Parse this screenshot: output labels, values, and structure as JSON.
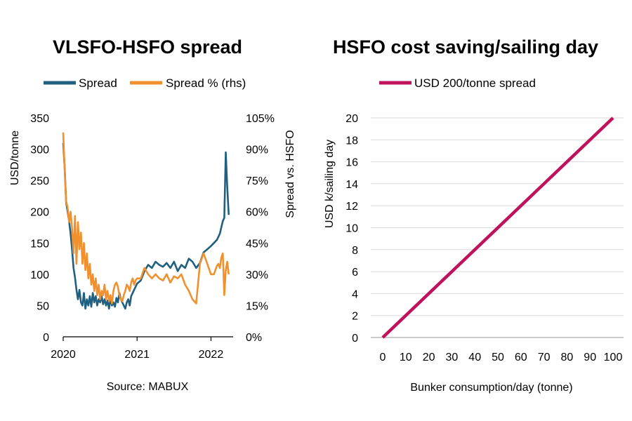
{
  "chart_data": [
    {
      "type": "line",
      "title": "VLSFO-HSFO spread",
      "ylabel": "USD/tonne",
      "y2label": "Spread  vs. HSFO",
      "ylim": [
        0,
        350
      ],
      "y2lim": [
        0,
        105
      ],
      "yticks": [
        "0",
        "50",
        "100",
        "150",
        "200",
        "250",
        "300",
        "350"
      ],
      "y2ticks": [
        "0%",
        "15%",
        "30%",
        "45%",
        "60%",
        "75%",
        "90%",
        "105%"
      ],
      "xticks": [
        "2020",
        "2021",
        "2022"
      ],
      "xlim": [
        2020.0,
        2022.3
      ],
      "grid": false,
      "legend_position": "top",
      "source": "Source: MABUX",
      "colors": {
        "Spread": "#1f5f7f",
        "Spread % (rhs)": "#f0902e"
      },
      "series": [
        {
          "name": "Spread",
          "axis": "left",
          "x": [
            2020.0,
            2020.02,
            2020.04,
            2020.06,
            2020.08,
            2020.1,
            2020.12,
            2020.14,
            2020.16,
            2020.18,
            2020.2,
            2020.22,
            2020.24,
            2020.26,
            2020.28,
            2020.3,
            2020.32,
            2020.34,
            2020.36,
            2020.38,
            2020.4,
            2020.42,
            2020.44,
            2020.46,
            2020.48,
            2020.5,
            2020.52,
            2020.54,
            2020.56,
            2020.58,
            2020.6,
            2020.62,
            2020.64,
            2020.66,
            2020.68,
            2020.7,
            2020.72,
            2020.74,
            2020.76,
            2020.78,
            2020.8,
            2020.82,
            2020.84,
            2020.86,
            2020.88,
            2020.9,
            2020.92,
            2020.94,
            2020.96,
            2020.98,
            2021.0,
            2021.05,
            2021.1,
            2021.15,
            2021.2,
            2021.25,
            2021.3,
            2021.35,
            2021.4,
            2021.45,
            2021.5,
            2021.55,
            2021.6,
            2021.65,
            2021.7,
            2021.75,
            2021.8,
            2021.85,
            2021.9,
            2021.95,
            2022.0,
            2022.04,
            2022.08,
            2022.1,
            2022.12,
            2022.14,
            2022.16,
            2022.18,
            2022.2,
            2022.22,
            2022.24
          ],
          "values": [
            310,
            270,
            215,
            200,
            185,
            165,
            140,
            110,
            95,
            75,
            60,
            75,
            55,
            50,
            70,
            45,
            60,
            50,
            65,
            48,
            70,
            55,
            65,
            50,
            60,
            55,
            65,
            52,
            60,
            50,
            58,
            45,
            60,
            50,
            55,
            48,
            62,
            55,
            70,
            60,
            55,
            50,
            45,
            55,
            60,
            50,
            65,
            70,
            75,
            80,
            85,
            90,
            105,
            115,
            110,
            120,
            115,
            112,
            118,
            110,
            120,
            105,
            115,
            110,
            125,
            120,
            110,
            118,
            135,
            140,
            145,
            150,
            155,
            160,
            165,
            175,
            185,
            190,
            295,
            240,
            195
          ]
        },
        {
          "name": "Spread % (rhs)",
          "axis": "right",
          "x": [
            2020.0,
            2020.02,
            2020.04,
            2020.06,
            2020.08,
            2020.1,
            2020.12,
            2020.14,
            2020.16,
            2020.18,
            2020.2,
            2020.22,
            2020.24,
            2020.26,
            2020.28,
            2020.3,
            2020.32,
            2020.34,
            2020.36,
            2020.38,
            2020.4,
            2020.42,
            2020.44,
            2020.46,
            2020.48,
            2020.5,
            2020.52,
            2020.54,
            2020.56,
            2020.58,
            2020.6,
            2020.62,
            2020.64,
            2020.66,
            2020.68,
            2020.7,
            2020.72,
            2020.74,
            2020.76,
            2020.78,
            2020.8,
            2020.82,
            2020.84,
            2020.86,
            2020.88,
            2020.9,
            2020.92,
            2020.94,
            2020.96,
            2020.98,
            2021.0,
            2021.05,
            2021.1,
            2021.15,
            2021.2,
            2021.25,
            2021.3,
            2021.35,
            2021.4,
            2021.45,
            2021.5,
            2021.55,
            2021.6,
            2021.65,
            2021.7,
            2021.75,
            2021.8,
            2021.85,
            2021.9,
            2021.95,
            2022.0,
            2022.04,
            2022.08,
            2022.1,
            2022.12,
            2022.14,
            2022.16,
            2022.18,
            2022.2,
            2022.22,
            2022.24
          ],
          "values": [
            98,
            80,
            65,
            62,
            55,
            60,
            52,
            40,
            58,
            35,
            55,
            42,
            50,
            35,
            45,
            32,
            40,
            28,
            35,
            25,
            30,
            22,
            28,
            20,
            25,
            18,
            22,
            20,
            25,
            18,
            22,
            17,
            20,
            16,
            22,
            25,
            26,
            24,
            20,
            18,
            17,
            20,
            22,
            25,
            24,
            22,
            26,
            28,
            25,
            27,
            28,
            28,
            33,
            30,
            28,
            30,
            28,
            27,
            30,
            26,
            29,
            28,
            30,
            25,
            22,
            18,
            16,
            35,
            40,
            35,
            30,
            30,
            34,
            35,
            33,
            38,
            40,
            20,
            32,
            36,
            30
          ]
        }
      ]
    },
    {
      "type": "line",
      "title": "HSFO cost saving/sailing day",
      "xlabel": "Bunker consumption/day (tonne)",
      "ylabel": "USD k/sailing day",
      "xlim": [
        0,
        100
      ],
      "ylim": [
        0,
        20
      ],
      "xticks": [
        "0",
        "10",
        "20",
        "30",
        "40",
        "50",
        "60",
        "70",
        "80",
        "90",
        "100"
      ],
      "yticks": [
        "0",
        "2",
        "4",
        "6",
        "8",
        "10",
        "12",
        "14",
        "16",
        "18",
        "20"
      ],
      "grid": true,
      "legend_position": "top",
      "colors": {
        "USD 200/tonne spread": "#c0125c"
      },
      "series": [
        {
          "name": "USD 200/tonne spread",
          "x": [
            0,
            100
          ],
          "values": [
            0,
            20
          ]
        }
      ]
    }
  ]
}
